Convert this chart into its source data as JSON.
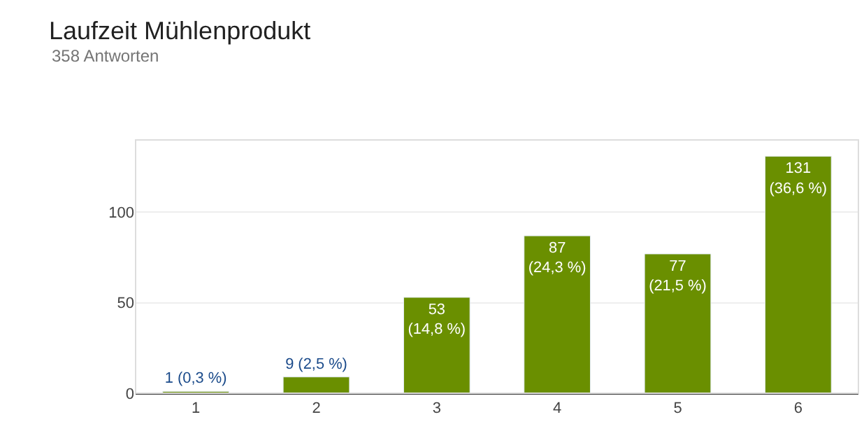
{
  "chart_data": {
    "type": "bar",
    "title": "Laufzeit Mühlenprodukt",
    "subtitle": "358 Antworten",
    "categories": [
      "1",
      "2",
      "3",
      "4",
      "5",
      "6"
    ],
    "values": [
      1,
      9,
      53,
      87,
      77,
      131
    ],
    "value_labels": [
      "1 (0,3 %)",
      "9 (2,5 %)",
      "53\n(14,8 %)",
      "87\n(24,3 %)",
      "77\n(21,5 %)",
      "131\n(36,6 %)"
    ],
    "color": "#6a8f00",
    "ylim": [
      0,
      140
    ],
    "yticks": [
      0,
      50,
      100
    ],
    "grid": "y",
    "legend": false
  }
}
